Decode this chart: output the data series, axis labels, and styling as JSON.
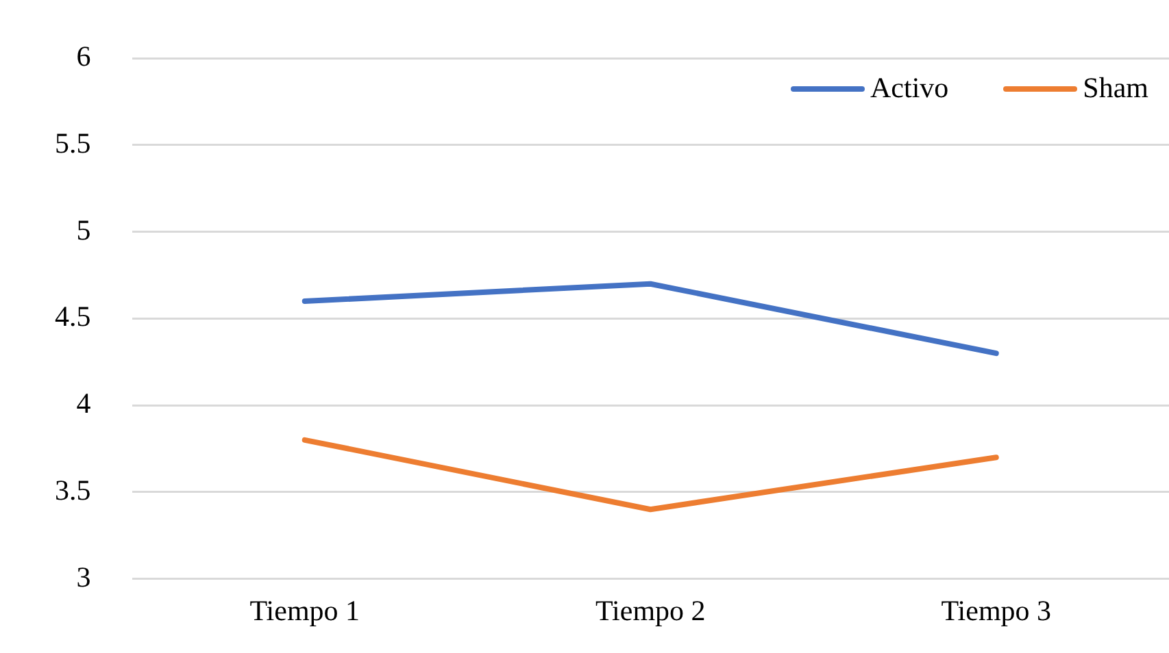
{
  "chart_data": {
    "type": "line",
    "categories": [
      "Tiempo 1",
      "Tiempo 2",
      "Tiempo 3"
    ],
    "series": [
      {
        "name": "Activo",
        "color": "#4472c4",
        "values": [
          4.6,
          4.7,
          4.3
        ]
      },
      {
        "name": "Sham",
        "color": "#ed7d31",
        "values": [
          3.8,
          3.4,
          3.7
        ]
      }
    ],
    "ylim": [
      3,
      6
    ],
    "yticks": [
      3,
      3.5,
      4,
      4.5,
      5,
      5.5,
      6
    ],
    "grid": "y",
    "legend": "top right",
    "marker": "none",
    "line_style": "solid"
  }
}
